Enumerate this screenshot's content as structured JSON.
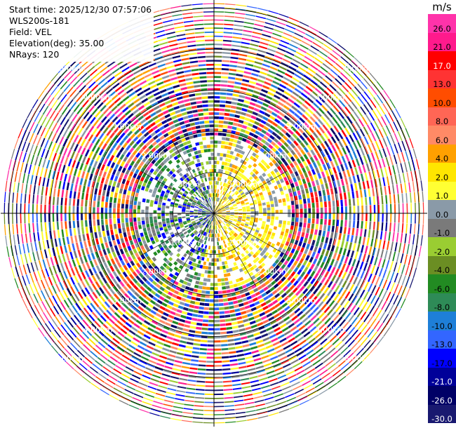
{
  "info": {
    "start_time": "Start time: 2025/12/30 07:57:06",
    "site": "WLS200s-181",
    "field": "Field: VEL",
    "elevation": "Elevation(deg): 35.00",
    "nrays": "NRays: 120"
  },
  "ppi": {
    "ring_labels": [
      "1.00km",
      "2.00km",
      "3.00km",
      "4.00km",
      "5.00km"
    ],
    "ring_distances_km": [
      1,
      2,
      3,
      4,
      5
    ],
    "max_range_km": 5.2,
    "rays": 120,
    "gates": 52,
    "near_field_km": 1.9
  },
  "colorbar": {
    "unit": "m/s",
    "levels": [
      {
        "label": "26.0",
        "color": "#ff33aa",
        "dark": false
      },
      {
        "label": "21.0",
        "color": "#ff1a8c",
        "dark": false
      },
      {
        "label": "17.0",
        "color": "#ff0000",
        "dark": true
      },
      {
        "label": "13.0",
        "color": "#ff3333",
        "dark": false
      },
      {
        "label": "10.0",
        "color": "#ff4d00",
        "dark": false
      },
      {
        "label": "8.0",
        "color": "#ff6655",
        "dark": false
      },
      {
        "label": "6.0",
        "color": "#ff8a66",
        "dark": false
      },
      {
        "label": "4.0",
        "color": "#ffa000",
        "dark": false
      },
      {
        "label": "2.0",
        "color": "#ffe600",
        "dark": false
      },
      {
        "label": "1.0",
        "color": "#ffff33",
        "dark": false
      },
      {
        "label": "0.0",
        "color": "#8a9aa8",
        "dark": false
      },
      {
        "label": "-1.0",
        "color": "#7a7a7a",
        "dark": false
      },
      {
        "label": "-2.0",
        "color": "#9acd32",
        "dark": false
      },
      {
        "label": "-4.0",
        "color": "#6b8e23",
        "dark": false
      },
      {
        "label": "-6.0",
        "color": "#228b22",
        "dark": false
      },
      {
        "label": "-8.0",
        "color": "#2e8b57",
        "dark": false
      },
      {
        "label": "-10.0",
        "color": "#1e7fd8",
        "dark": false
      },
      {
        "label": "-13.0",
        "color": "#3366ff",
        "dark": false
      },
      {
        "label": "-17.0",
        "color": "#0000ff",
        "dark": false
      },
      {
        "label": "-21.0",
        "color": "#000099",
        "dark": true
      },
      {
        "label": "-26.0",
        "color": "#000066",
        "dark": true
      },
      {
        "label": "-30.0",
        "color": "#191970",
        "dark": true
      }
    ]
  }
}
